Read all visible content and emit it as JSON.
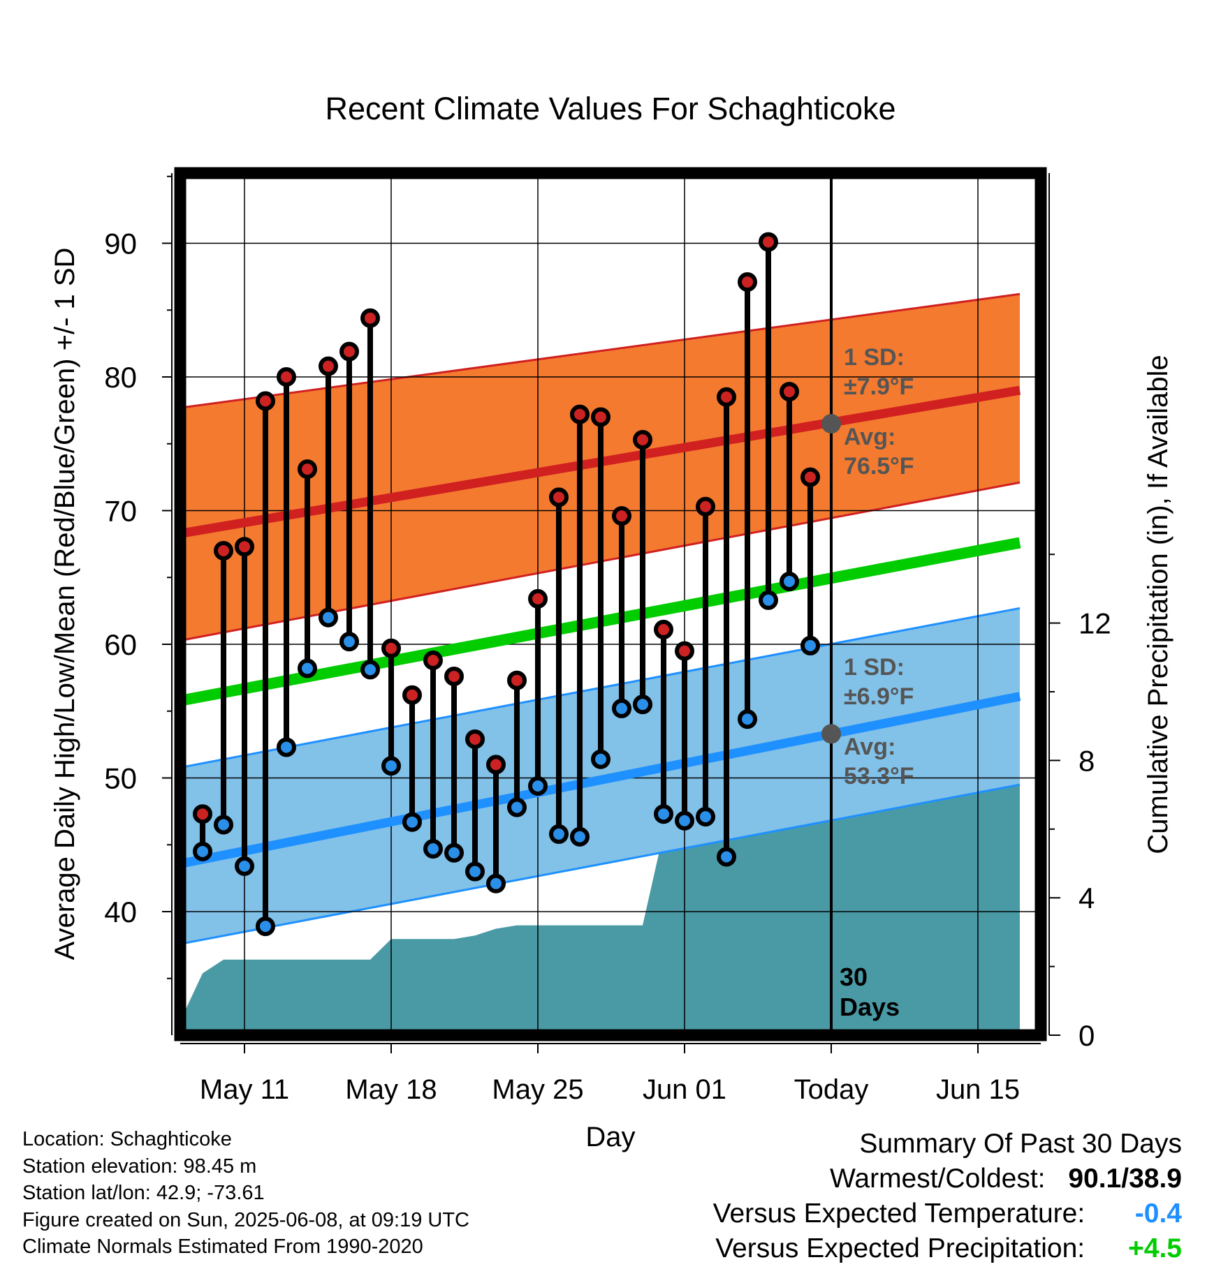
{
  "title": "Recent Climate Values For Schaghticoke",
  "chart_data": {
    "type": "line",
    "title": "Recent Climate Values For Schaghticoke",
    "xlabel": "Day",
    "ylabel": "Average Daily High/Low/Mean (Red/Blue/Green) +/- 1 SD",
    "y2label": "Cumulative Precipitation (in), If Available",
    "ylim": [
      30,
      95.5
    ],
    "y2lim": [
      0,
      25.5
    ],
    "yticks": [
      40,
      50,
      60,
      70,
      80,
      90
    ],
    "y2ticks": [
      0,
      4,
      8,
      12
    ],
    "xlim": [
      "2025-05-08",
      "2025-06-17"
    ],
    "xticks": [
      {
        "date": "2025-05-11",
        "label": "May 11"
      },
      {
        "date": "2025-05-18",
        "label": "May 18"
      },
      {
        "date": "2025-05-25",
        "label": "May 25"
      },
      {
        "date": "2025-06-01",
        "label": "Jun 01"
      },
      {
        "date": "2025-06-08",
        "label": "Today"
      },
      {
        "date": "2025-06-15",
        "label": "Jun 15"
      }
    ],
    "grid": true,
    "dates": [
      "2025-05-09",
      "2025-05-10",
      "2025-05-11",
      "2025-05-12",
      "2025-05-13",
      "2025-05-14",
      "2025-05-15",
      "2025-05-16",
      "2025-05-17",
      "2025-05-18",
      "2025-05-19",
      "2025-05-20",
      "2025-05-21",
      "2025-05-22",
      "2025-05-23",
      "2025-05-24",
      "2025-05-25",
      "2025-05-26",
      "2025-05-27",
      "2025-05-28",
      "2025-05-29",
      "2025-05-30",
      "2025-05-31",
      "2025-06-01",
      "2025-06-02",
      "2025-06-03",
      "2025-06-04",
      "2025-06-05",
      "2025-06-06",
      "2025-06-07"
    ],
    "daily_high": [
      47.3,
      67.0,
      67.3,
      78.2,
      80.0,
      73.1,
      80.8,
      81.9,
      84.4,
      59.7,
      56.2,
      58.8,
      57.6,
      52.9,
      51.0,
      57.3,
      63.4,
      71.0,
      77.2,
      77.0,
      69.6,
      75.3,
      61.1,
      59.5,
      70.3,
      78.5,
      87.1,
      90.1,
      78.9,
      72.5
    ],
    "daily_low": [
      44.5,
      46.5,
      43.4,
      38.9,
      52.3,
      58.2,
      62.0,
      60.2,
      58.1,
      50.9,
      46.7,
      44.7,
      44.4,
      43.0,
      42.1,
      47.8,
      49.4,
      45.8,
      45.6,
      51.4,
      55.2,
      55.5,
      47.3,
      46.8,
      47.1,
      44.1,
      54.4,
      63.3,
      64.7,
      59.9
    ],
    "normal_high": {
      "start": 68.3,
      "end": 79.0,
      "sd_upper_start": 77.7,
      "sd_upper_end": 86.2,
      "sd_lower_start": 60.3,
      "sd_lower_end": 72.1
    },
    "normal_low": {
      "start": 43.6,
      "end": 56.1,
      "sd_upper_start": 50.8,
      "sd_upper_end": 62.7,
      "sd_lower_start": 37.6,
      "sd_lower_end": 49.5
    },
    "normal_mean": {
      "start": 55.8,
      "end": 67.6
    },
    "cumulative_precip": {
      "dates": [
        "2025-05-08",
        "2025-05-09",
        "2025-05-10",
        "2025-05-17",
        "2025-05-18",
        "2025-05-21",
        "2025-05-22",
        "2025-05-23",
        "2025-05-24",
        "2025-05-30",
        "2025-05-31",
        "2025-06-04",
        "2025-06-05",
        "2025-06-06",
        "2025-06-07",
        "2025-06-08",
        "2025-06-17"
      ],
      "values": [
        0.5,
        1.8,
        2.2,
        2.2,
        2.8,
        2.8,
        2.9,
        3.1,
        3.2,
        3.2,
        5.9,
        5.9,
        6.2,
        6.5,
        8.0,
        8.0,
        8.0
      ]
    },
    "annotations": {
      "high_sd": "1 SD:",
      "high_sd_value": "±7.9°F",
      "high_avg": "Avg:",
      "high_avg_value": "76.5°F",
      "low_sd": "1 SD:",
      "low_sd_value": "±6.9°F",
      "low_avg": "Avg:",
      "low_avg_value": "53.3°F",
      "days_count": "30",
      "days_label": "Days"
    },
    "today_high_normal": 76.5,
    "today_low_normal": 53.3,
    "colors": {
      "high_band": "#f47a30",
      "high_line": "#d02020",
      "low_band": "#82c1e8",
      "low_line": "#1e90ff",
      "mean_line": "#00cc00",
      "precip": "#4a9aa5",
      "high_marker": "#cc2222",
      "low_marker": "#2a8fe8",
      "today_marker": "#555555",
      "annotation_text": "#555555"
    }
  },
  "footer": {
    "location": "Location: Schaghticoke",
    "elevation": "Station elevation: 98.45 m",
    "latlon": "Station lat/lon: 42.9; -73.61",
    "created": "Figure created on Sun, 2025-06-08, at 09:19 UTC",
    "normals": "Climate Normals Estimated From 1990-2020"
  },
  "summary": {
    "heading": "Summary Of Past 30 Days",
    "warm_cold_label": "Warmest/Coldest:",
    "warm_cold_value": "90.1/38.9",
    "temp_label": "Versus Expected Temperature:",
    "temp_value": "-0.4",
    "precip_label": "Versus Expected Precipitation:",
    "precip_value": "+4.5"
  }
}
